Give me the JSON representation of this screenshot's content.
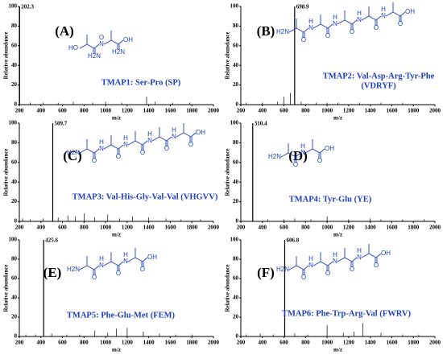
{
  "chart_data": [
    {
      "type": "bar",
      "label": "(A)",
      "title": [
        "TMAP1: Ser-Pro (SP)"
      ],
      "xlabel": "m/z",
      "ylabel": "Relative abundance",
      "xlim": [
        200,
        2000
      ],
      "ylim": [
        0,
        100
      ],
      "xticks": [
        200,
        400,
        600,
        800,
        1000,
        1200,
        1400,
        1600,
        1800,
        2000
      ],
      "yticks": [
        0,
        20,
        40,
        60,
        80,
        100
      ],
      "color": "#000000",
      "x": [
        202.3,
        300,
        420,
        560,
        700,
        880,
        1000,
        1150,
        1380,
        1460,
        1620,
        1780
      ],
      "values": [
        100,
        2,
        2,
        2,
        3,
        2,
        3,
        2,
        8,
        3,
        2,
        2
      ],
      "atom_labels": [
        "HO",
        "H2N",
        "N",
        "O",
        "OH"
      ]
    },
    {
      "type": "bar",
      "label": "(B)",
      "title": [
        "TMAP2: Val-Asp-Arg-Tyr-Phe",
        "(VDRYF)"
      ],
      "xlabel": "m/z",
      "ylabel": "Relative abundance",
      "xlim": [
        200,
        2000
      ],
      "ylim": [
        0,
        100
      ],
      "xticks": [
        200,
        400,
        600,
        800,
        1000,
        1200,
        1400,
        1600,
        1800,
        2000
      ],
      "yticks": [
        0,
        20,
        40,
        60,
        80,
        100
      ],
      "color": "#000000",
      "x": [
        698.9,
        250,
        400,
        540,
        600,
        660,
        760,
        900,
        1000,
        1100,
        1300,
        1500,
        1700
      ],
      "values": [
        100,
        2,
        2,
        3,
        8,
        12,
        3,
        2,
        2,
        2,
        2,
        2,
        2
      ],
      "atom_labels": [
        "H2N",
        "O",
        "N",
        "H",
        "OH"
      ]
    },
    {
      "type": "bar",
      "label": "(C)",
      "title": [
        "TMAP3: Val-His-Gly-Val-Val (VHGVV)"
      ],
      "xlabel": "m/z",
      "ylabel": "Relative abundance",
      "xlim": [
        200,
        2000
      ],
      "ylim": [
        0,
        100
      ],
      "xticks": [
        200,
        400,
        600,
        800,
        1000,
        1200,
        1400,
        1600,
        1800,
        2000
      ],
      "yticks": [
        0,
        20,
        40,
        60,
        80,
        100
      ],
      "color": "#000000",
      "x": [
        509.7,
        230,
        300,
        420,
        560,
        650,
        720,
        800,
        900,
        1020,
        1130,
        1250,
        1400,
        1560,
        1700,
        1880
      ],
      "values": [
        100,
        3,
        2,
        3,
        4,
        6,
        5,
        8,
        4,
        7,
        3,
        5,
        4,
        3,
        2,
        2
      ],
      "atom_labels": [
        "H2N",
        "O",
        "N",
        "H",
        "OH"
      ]
    },
    {
      "type": "bar",
      "label": "(D)",
      "title": [
        "TMAP4: Tyr-Glu (YE)"
      ],
      "xlabel": "m/z",
      "ylabel": "Relative abundance",
      "xlim": [
        200,
        2000
      ],
      "ylim": [
        0,
        100
      ],
      "xticks": [
        200,
        400,
        600,
        800,
        1000,
        1200,
        1400,
        1600,
        1800,
        2000
      ],
      "yticks": [
        0,
        20,
        40,
        60,
        80,
        100
      ],
      "color": "#000000",
      "x": [
        310.4,
        450,
        600,
        700,
        850,
        1000,
        1200,
        1400,
        1500,
        1700,
        1900
      ],
      "values": [
        100,
        2,
        2,
        3,
        2,
        5,
        2,
        3,
        2,
        2,
        2
      ],
      "atom_labels": [
        "H2N",
        "O",
        "N",
        "H",
        "OH"
      ]
    },
    {
      "type": "bar",
      "label": "(E)",
      "title": [
        "TMAP5: Phe-Glu-Met (FEM)"
      ],
      "xlabel": "m/z",
      "ylabel": "Relative abundance",
      "xlim": [
        200,
        2000
      ],
      "ylim": [
        0,
        100
      ],
      "xticks": [
        200,
        400,
        600,
        800,
        1000,
        1200,
        1400,
        1600,
        1800,
        2000
      ],
      "yticks": [
        0,
        20,
        40,
        60,
        80,
        100
      ],
      "color": "#000000",
      "x": [
        425.6,
        260,
        350,
        500,
        640,
        760,
        900,
        1020,
        1100,
        1200,
        1350,
        1500,
        1650,
        1800
      ],
      "values": [
        100,
        2,
        2,
        3,
        2,
        2,
        6,
        4,
        8,
        9,
        5,
        3,
        2,
        2
      ],
      "atom_labels": [
        "H2N",
        "O",
        "N",
        "H",
        "OH"
      ]
    },
    {
      "type": "bar",
      "label": "(F)",
      "title": [
        "TMAP6: Phe-Trp-Arg-Val (FWRV)"
      ],
      "xlabel": "m/z",
      "ylabel": "Relative abundance",
      "xlim": [
        200,
        2000
      ],
      "ylim": [
        0,
        100
      ],
      "xticks": [
        200,
        400,
        600,
        800,
        1000,
        1200,
        1400,
        1600,
        1800,
        2000
      ],
      "yticks": [
        0,
        20,
        40,
        60,
        80,
        100
      ],
      "color": "#000000",
      "x": [
        606.8,
        250,
        380,
        500,
        700,
        820,
        1000,
        1150,
        1250,
        1330,
        1500,
        1700,
        1850
      ],
      "values": [
        100,
        2,
        3,
        2,
        3,
        2,
        12,
        4,
        5,
        14,
        4,
        2,
        2
      ],
      "atom_labels": [
        "H2N",
        "O",
        "N",
        "H",
        "OH"
      ]
    }
  ]
}
